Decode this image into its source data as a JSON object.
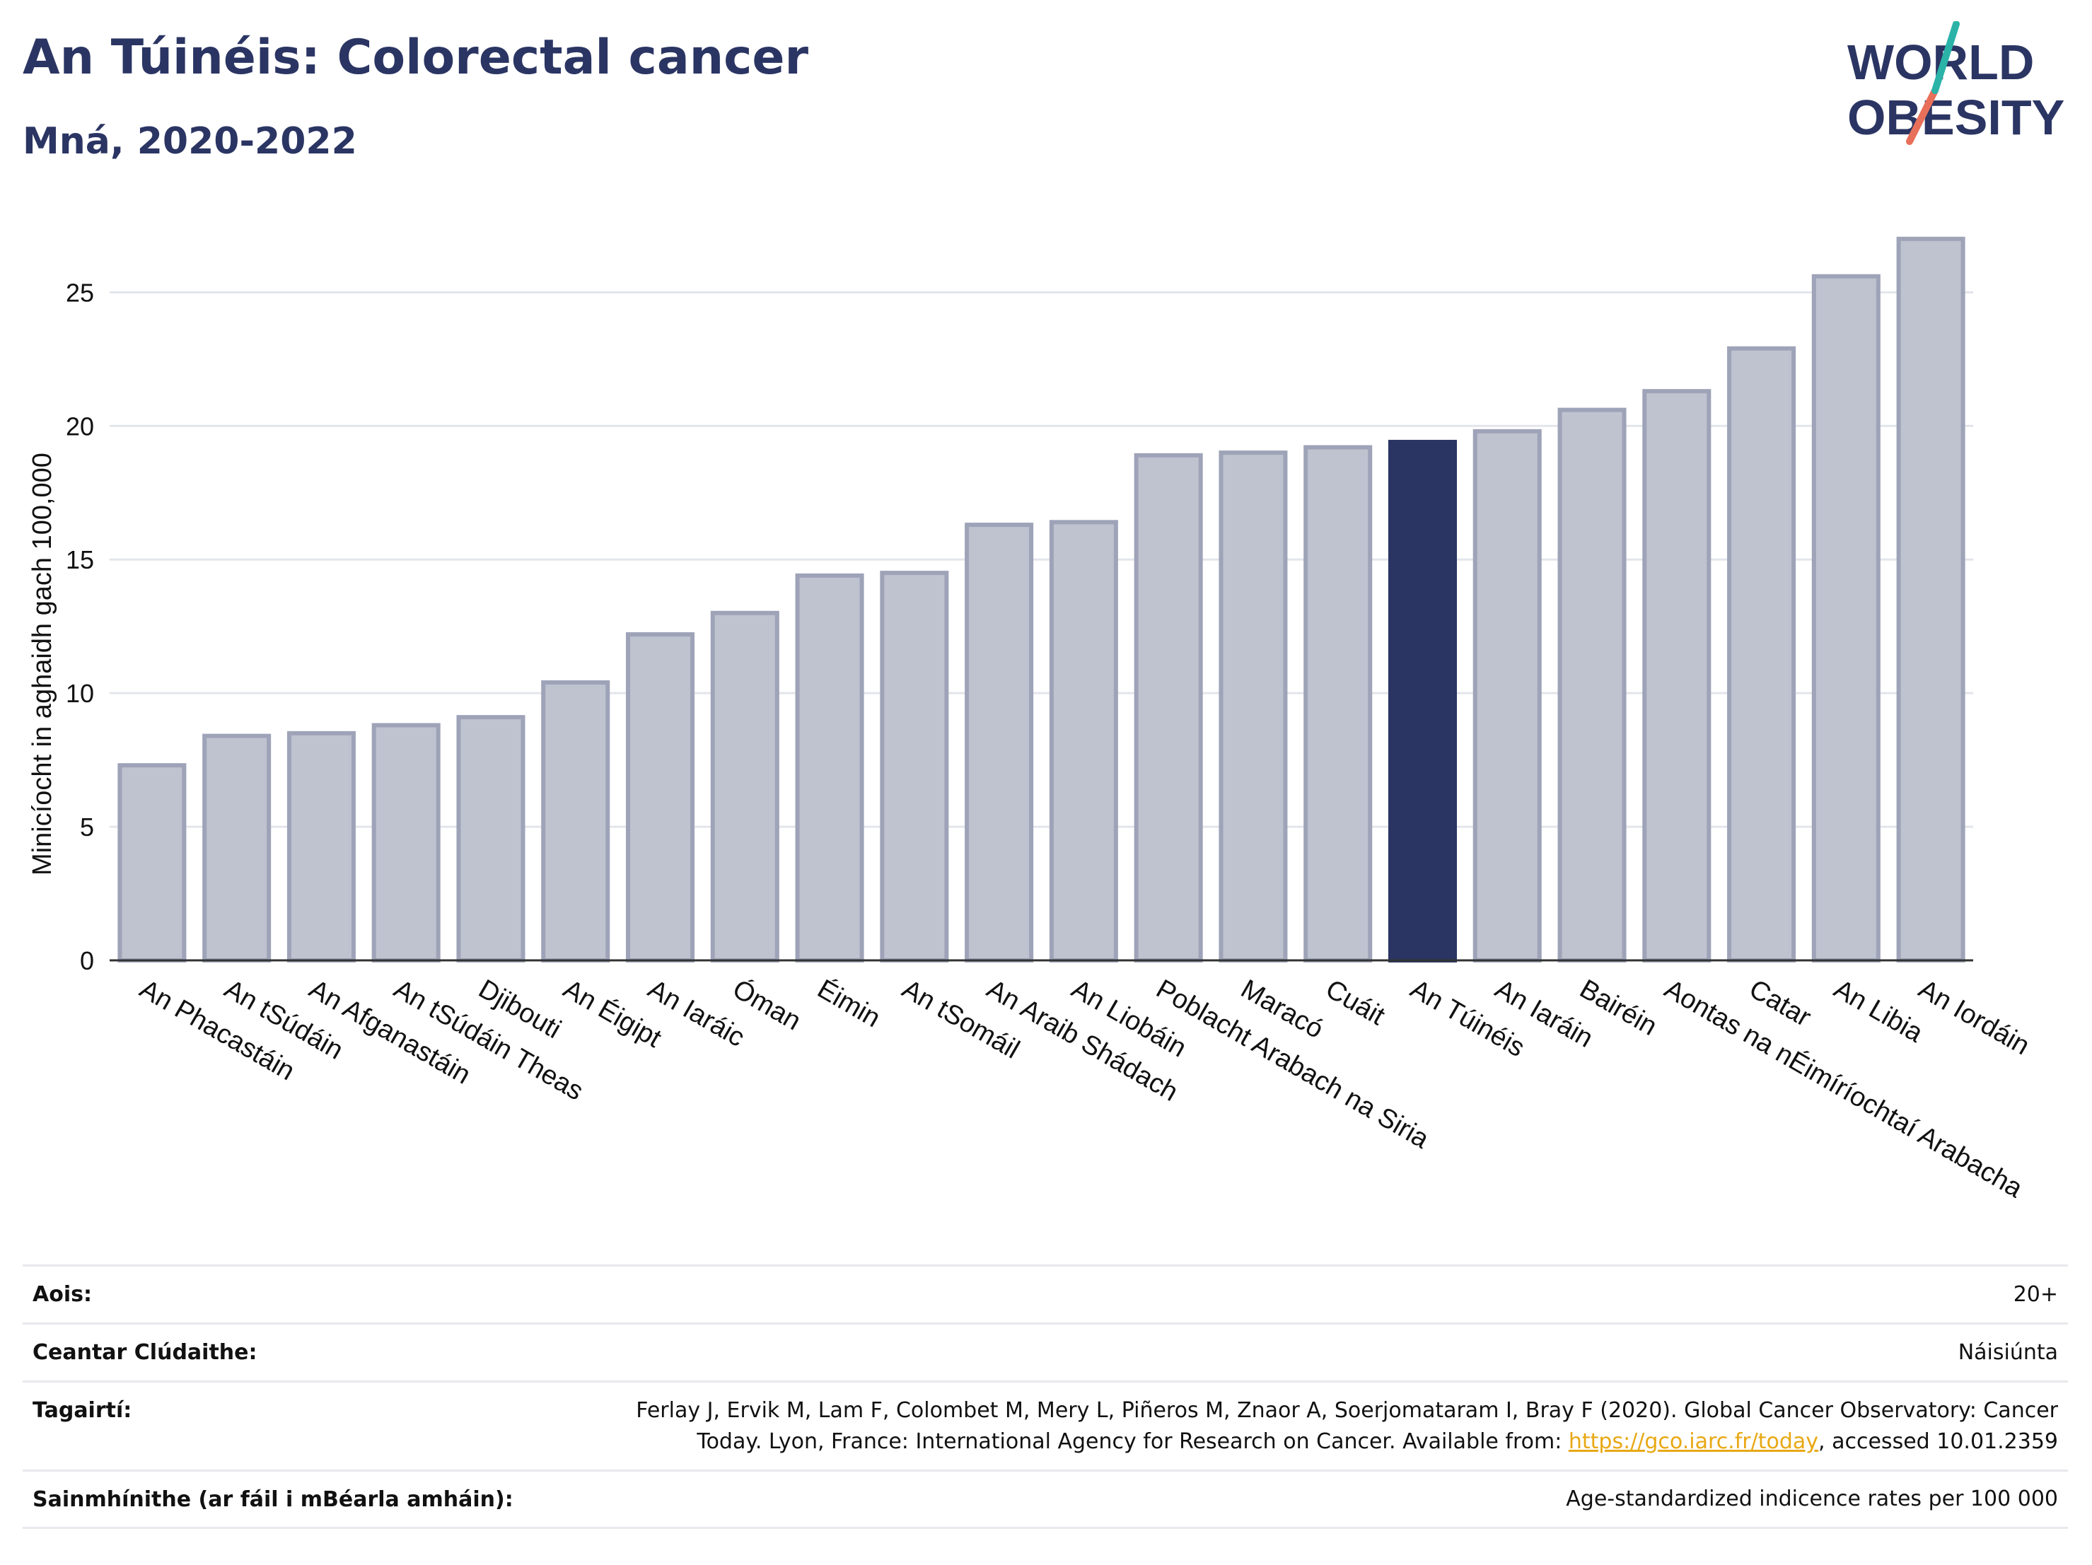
{
  "header": {
    "title": "An Túinéis: Colorectal cancer",
    "subtitle": "Mná, 2020-2022"
  },
  "logo": {
    "line1": "WORLD",
    "line2": "OBESITY",
    "colors": {
      "text": "#2b3563",
      "accent_teal": "#2bb3a8",
      "accent_red": "#e8705a"
    }
  },
  "chart_data": {
    "type": "bar",
    "ylabel": "Minicíocht in aghaidh gach 100,000",
    "xlabel": "",
    "ylim": [
      0,
      28
    ],
    "yticks": [
      0,
      5,
      10,
      15,
      20,
      25
    ],
    "grid": true,
    "highlight": "An Túinéis",
    "colors": {
      "bar": "#bfc2cf",
      "bar_edge": "#9ea3b8",
      "highlight": "#2b3563",
      "grid": "#e3e5ec",
      "axis": "#333333"
    },
    "categories": [
      "An Phacastáin",
      "An tSúdáin",
      "An Afganastáin",
      "An tSúdáin Theas",
      "Djibouti",
      "An Éigipt",
      "An Iaráic",
      "Óman",
      "Éimin",
      "An tSomáil",
      "An Araib Shádach",
      "An Liobáin",
      "Poblacht Arabach na Siria",
      "Maracó",
      "Cuáit",
      "An Túinéis",
      "An Iaráin",
      "Bairéin",
      "Aontas na nÉimíríochtaí Arabacha",
      "Catar",
      "An Libia",
      "An Iordáin"
    ],
    "values": [
      7.3,
      8.4,
      8.5,
      8.8,
      9.1,
      10.4,
      12.2,
      13.0,
      14.4,
      14.5,
      16.3,
      16.4,
      18.9,
      19.0,
      19.2,
      19.4,
      19.8,
      20.6,
      21.3,
      22.9,
      25.6,
      27.0
    ]
  },
  "info": {
    "age_label": "Aois:",
    "age_value": "20+",
    "coverage_label": "Ceantar Clúdaithe:",
    "coverage_value": "Náisiúnta",
    "references_label": "Tagairtí:",
    "references_line1": "Ferlay J, Ervik M, Lam F, Colombet M, Mery L, Piñeros M, Znaor A, Soerjomataram I, Bray F (2020). Global Cancer Observatory: Cancer",
    "references_line2_pre": "Today. Lyon, France: International Agency for Research on Cancer. Available from: ",
    "references_link": "https://gco.iarc.fr/today",
    "references_line2_post": ", accessed 10.01.2359",
    "definitions_label": "Sainmhínithe (ar fáil i mBéarla amháin):",
    "definitions_value": "Age-standardized indicence rates per 100 000"
  }
}
